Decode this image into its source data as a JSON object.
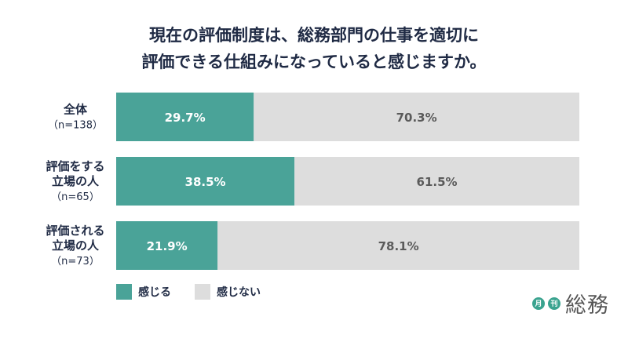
{
  "chart_data": {
    "type": "bar",
    "stacked": true,
    "horizontal": true,
    "title_lines": [
      "現在の評価制度は、総務部門の仕事を適切に",
      "評価できる仕組みになっていると感じますか。"
    ],
    "categories": [
      {
        "label_lines": [
          "全体"
        ],
        "n": "（n=138）"
      },
      {
        "label_lines": [
          "評価をする",
          "立場の人"
        ],
        "n": "（n=65）"
      },
      {
        "label_lines": [
          "評価される",
          "立場の人"
        ],
        "n": "（n=73）"
      }
    ],
    "series": [
      {
        "name": "感じる",
        "color": "#4aa398",
        "values": [
          29.7,
          38.5,
          21.9
        ]
      },
      {
        "name": "感じない",
        "color": "#dddddd",
        "values": [
          70.3,
          61.5,
          78.1
        ]
      }
    ],
    "value_format": "{v}%",
    "xlim": [
      0,
      100
    ]
  },
  "brand": {
    "badge1": "月",
    "badge2": "刊",
    "name": "総務"
  }
}
